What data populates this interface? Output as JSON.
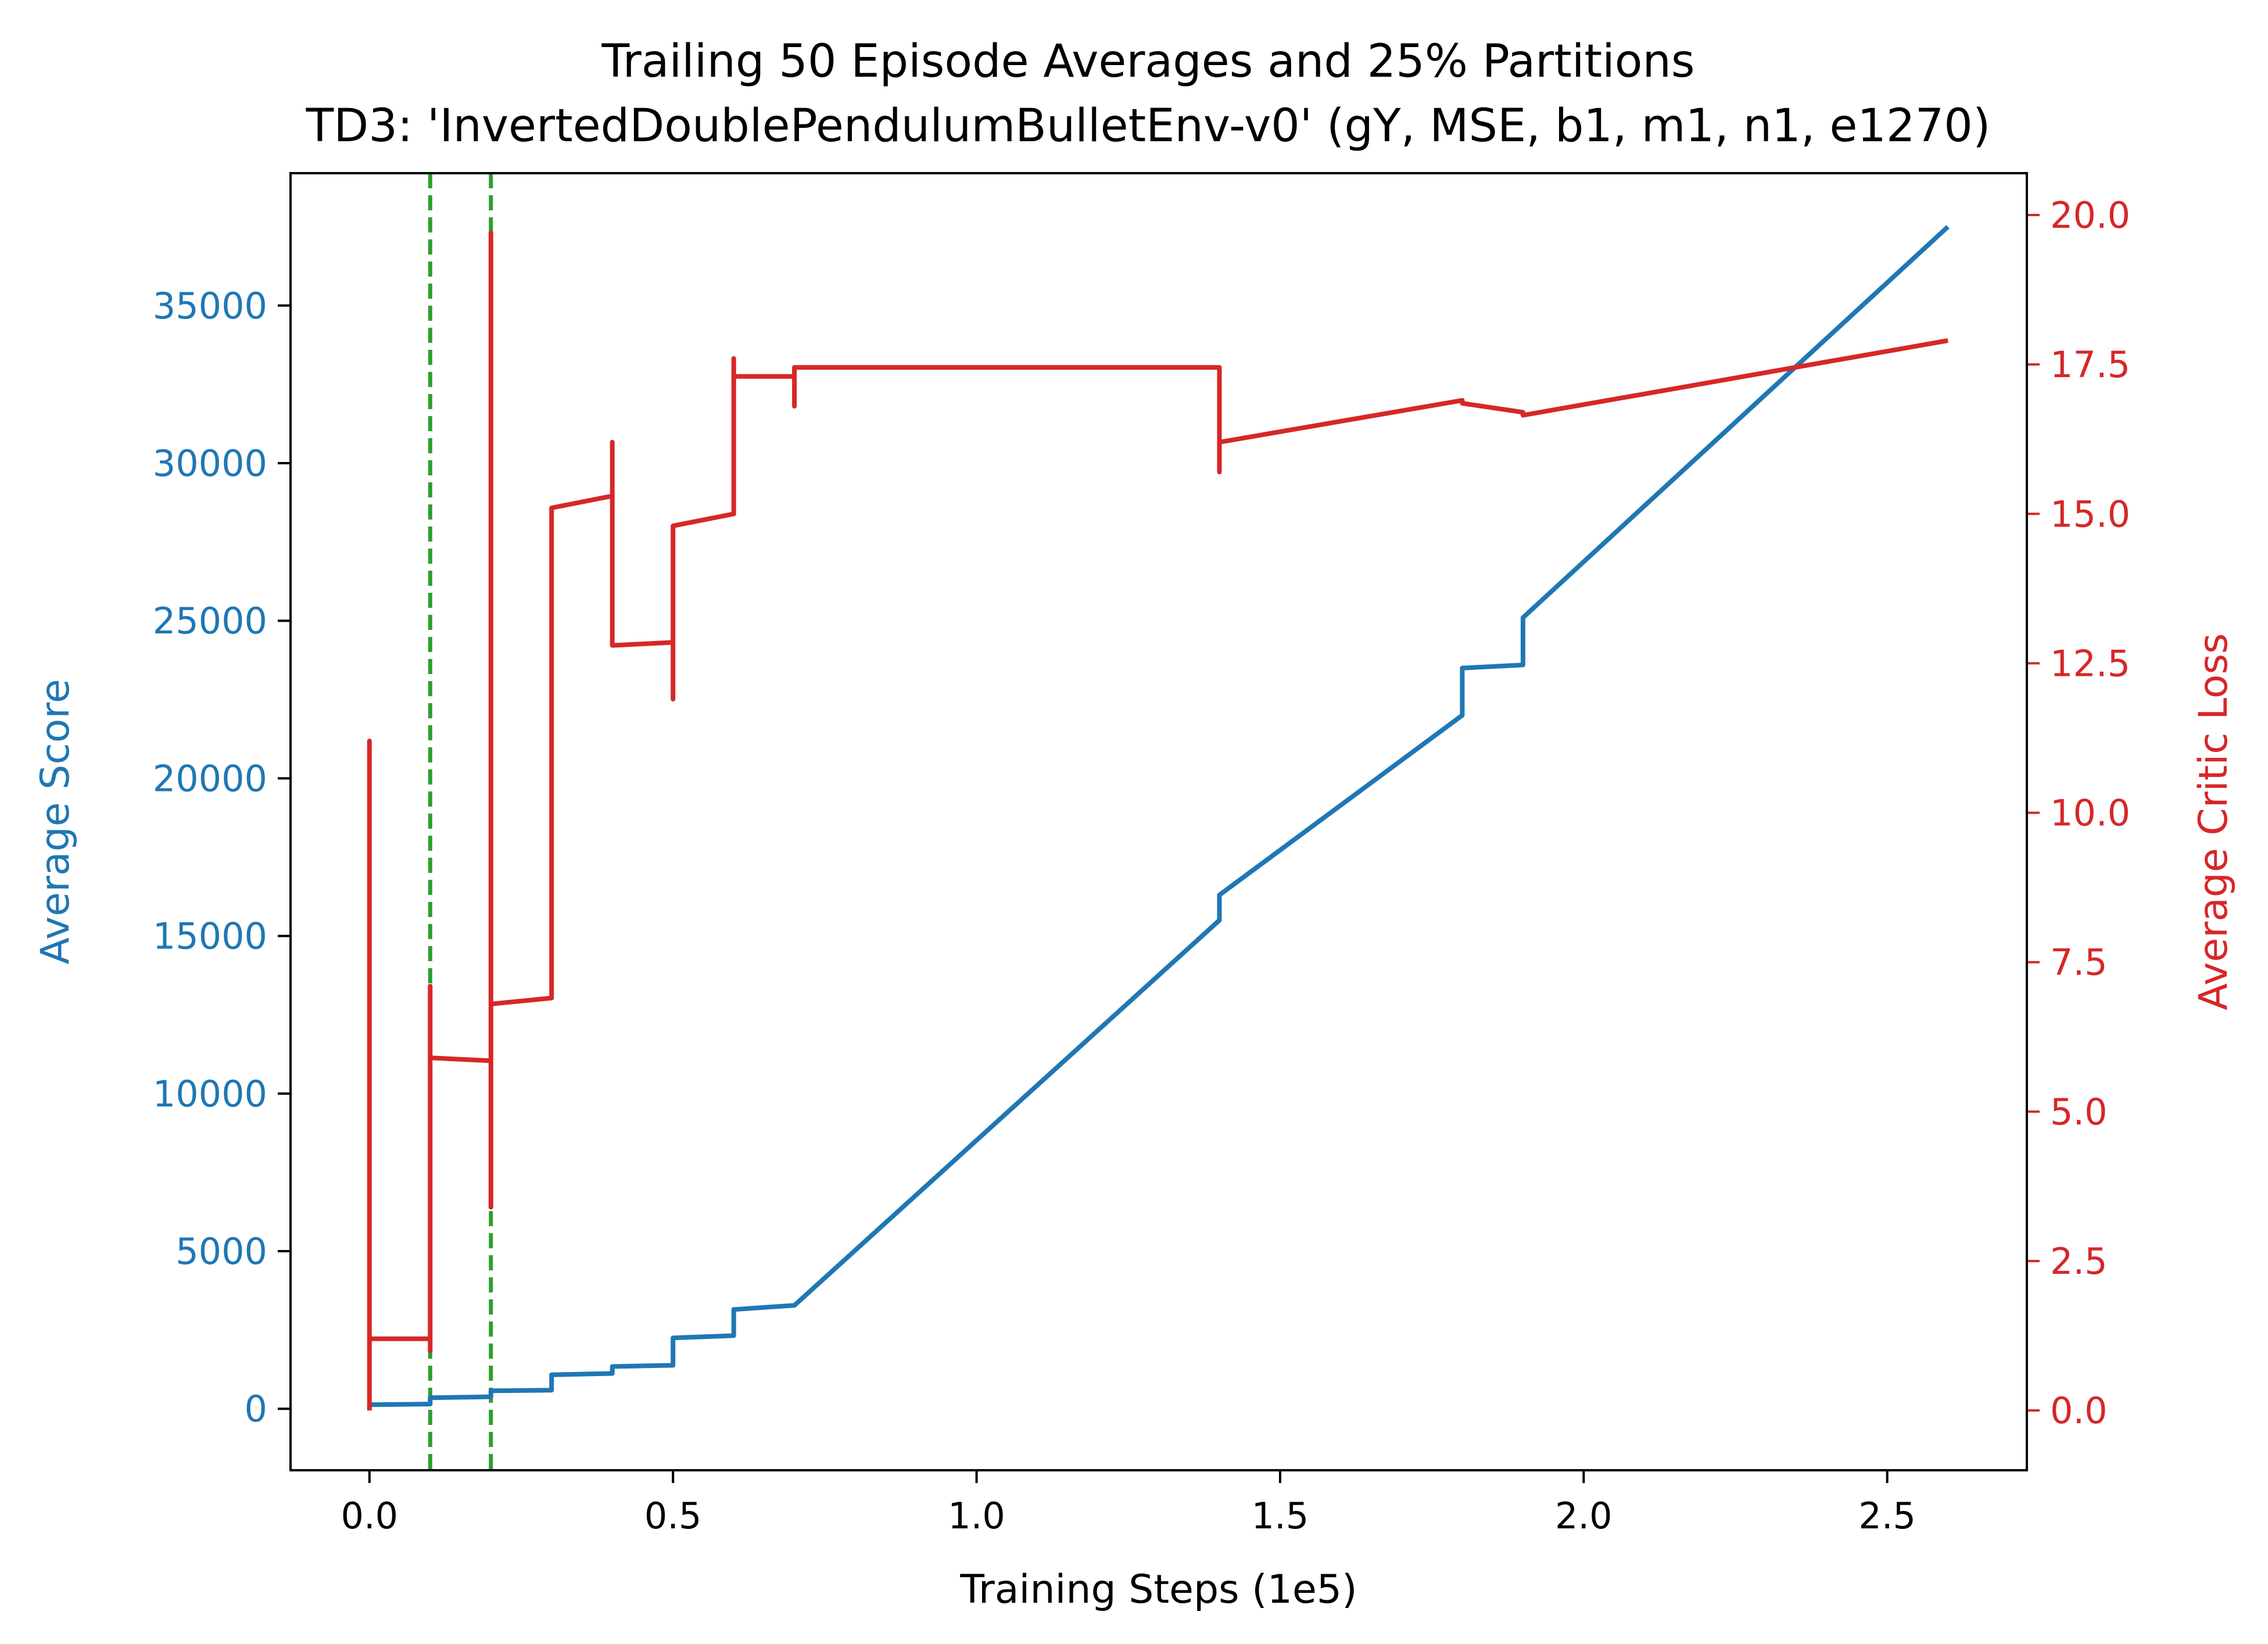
{
  "chart_data": {
    "type": "line",
    "title": "Trailing 50 Episode Averages and 25% Partitions",
    "subtitle": "TD3: 'InvertedDoublePendulumBulletEnv-v0' (gY, MSE, b1, m1, n1, e1270)",
    "xlabel": "Training Steps (1e5)",
    "ylabel_left": "Average Score",
    "ylabel_right": "Average Critic Loss",
    "xlim": [
      -0.13,
      2.73
    ],
    "ylim_left": [
      -1950,
      39200
    ],
    "ylim_right": [
      -1.0,
      20.7
    ],
    "x_ticks": [
      0.0,
      0.5,
      1.0,
      1.5,
      2.0,
      2.5
    ],
    "x_tick_labels": [
      "0.0",
      "0.5",
      "1.0",
      "1.5",
      "2.0",
      "2.5"
    ],
    "y_left_ticks": [
      0,
      5000,
      10000,
      15000,
      20000,
      25000,
      30000,
      35000
    ],
    "y_left_tick_labels": [
      "0",
      "5000",
      "10000",
      "15000",
      "20000",
      "25000",
      "30000",
      "35000"
    ],
    "y_right_ticks": [
      0.0,
      2.5,
      5.0,
      7.5,
      10.0,
      12.5,
      15.0,
      17.5,
      20.0
    ],
    "y_right_tick_labels": [
      "0.0",
      "2.5",
      "5.0",
      "7.5",
      "10.0",
      "12.5",
      "15.0",
      "17.5",
      "20.0"
    ],
    "grid": false,
    "partition_lines_x": [
      0.1,
      0.2
    ],
    "series": [
      {
        "axis": "left",
        "color": "#1f77b4",
        "points": [
          [
            0.0,
            0
          ],
          [
            0.0,
            130
          ],
          [
            0.1,
            150
          ],
          [
            0.1,
            350
          ],
          [
            0.2,
            380
          ],
          [
            0.2,
            570
          ],
          [
            0.3,
            590
          ],
          [
            0.3,
            1080
          ],
          [
            0.4,
            1120
          ],
          [
            0.4,
            1340
          ],
          [
            0.5,
            1380
          ],
          [
            0.5,
            2250
          ],
          [
            0.6,
            2320
          ],
          [
            0.6,
            3150
          ],
          [
            0.7,
            3280
          ],
          [
            1.4,
            15500
          ],
          [
            1.4,
            16300
          ],
          [
            1.8,
            22000
          ],
          [
            1.8,
            23500
          ],
          [
            1.9,
            23600
          ],
          [
            1.9,
            25100
          ],
          [
            2.6,
            37500
          ]
        ]
      },
      {
        "axis": "right",
        "color": "#d62728",
        "points": [
          [
            0.0,
            0.0
          ],
          [
            0.0,
            11.2
          ],
          [
            0.0,
            1.2
          ],
          [
            0.1,
            1.2
          ],
          [
            0.1,
            1.0
          ],
          [
            0.1,
            7.1
          ],
          [
            0.1,
            5.9
          ],
          [
            0.2,
            5.85
          ],
          [
            0.2,
            3.4
          ],
          [
            0.2,
            19.7
          ],
          [
            0.2,
            6.8
          ],
          [
            0.3,
            6.9
          ],
          [
            0.3,
            15.1
          ],
          [
            0.4,
            15.3
          ],
          [
            0.4,
            16.2
          ],
          [
            0.4,
            12.8
          ],
          [
            0.5,
            12.85
          ],
          [
            0.5,
            11.9
          ],
          [
            0.5,
            14.8
          ],
          [
            0.6,
            15.0
          ],
          [
            0.6,
            17.6
          ],
          [
            0.6,
            17.3
          ],
          [
            0.7,
            17.3
          ],
          [
            0.7,
            16.8
          ],
          [
            0.7,
            17.45
          ],
          [
            1.4,
            17.45
          ],
          [
            1.4,
            15.7
          ],
          [
            1.4,
            16.2
          ],
          [
            1.8,
            16.9
          ],
          [
            1.8,
            16.85
          ],
          [
            1.9,
            16.7
          ],
          [
            1.9,
            16.65
          ],
          [
            2.6,
            17.9
          ]
        ]
      }
    ]
  },
  "colors": {
    "left_axis": "#1f77b4",
    "right_axis": "#d62728",
    "partition": "#2ca02c",
    "axis": "#000000"
  }
}
